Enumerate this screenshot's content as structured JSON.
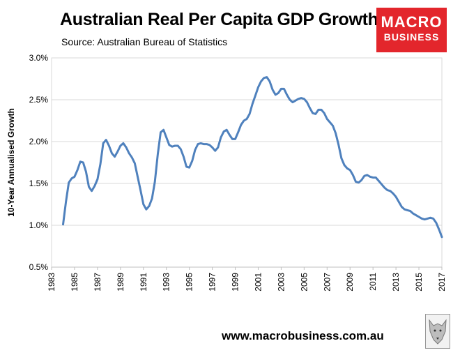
{
  "title": "Australian Real Per Capita GDP Growth",
  "subtitle": "Source: Australian Bureau of Statistics",
  "logo": {
    "line1": "MACRO",
    "line2": "BUSINESS"
  },
  "website": "www.macrobusiness.com.au",
  "colors": {
    "line": "#4f81bd",
    "logo_bg": "#e3262c",
    "grid": "#d9d9d9",
    "axis": "#bfbfbf"
  },
  "chart_data": {
    "type": "line",
    "title": "Australian Real Per Capita GDP Growth",
    "xlabel": "",
    "ylabel": "10-Year Annualised Growth",
    "xlim": [
      1983,
      2017
    ],
    "ylim": [
      0.5,
      3.0
    ],
    "x_ticks": [
      "1983",
      "1985",
      "1987",
      "1989",
      "1991",
      "1993",
      "1995",
      "1997",
      "1999",
      "2001",
      "2003",
      "2005",
      "2007",
      "2009",
      "2011",
      "2013",
      "2015",
      "2017"
    ],
    "y_ticks": [
      "0.5%",
      "1.0%",
      "1.5%",
      "2.0%",
      "2.5%",
      "3.0%"
    ],
    "grid": "horizontal",
    "series": [
      {
        "x": [
          1984.0,
          1984.25,
          1984.5,
          1984.75,
          1985.0,
          1985.25,
          1985.5,
          1985.75,
          1986.0,
          1986.25,
          1986.5,
          1986.75,
          1987.0,
          1987.25,
          1987.5,
          1987.75,
          1988.0,
          1988.25,
          1988.5,
          1988.75,
          1989.0,
          1989.25,
          1989.5,
          1989.75,
          1990.0,
          1990.25,
          1990.5,
          1990.75,
          1991.0,
          1991.25,
          1991.5,
          1991.75,
          1992.0,
          1992.25,
          1992.5,
          1992.75,
          1993.0,
          1993.25,
          1993.5,
          1993.75,
          1994.0,
          1994.25,
          1994.5,
          1994.75,
          1995.0,
          1995.25,
          1995.5,
          1995.75,
          1996.0,
          1996.25,
          1996.5,
          1996.75,
          1997.0,
          1997.25,
          1997.5,
          1997.75,
          1998.0,
          1998.25,
          1998.5,
          1998.75,
          1999.0,
          1999.25,
          1999.5,
          1999.75,
          2000.0,
          2000.25,
          2000.5,
          2000.75,
          2001.0,
          2001.25,
          2001.5,
          2001.75,
          2002.0,
          2002.25,
          2002.5,
          2002.75,
          2003.0,
          2003.25,
          2003.5,
          2003.75,
          2004.0,
          2004.25,
          2004.5,
          2004.75,
          2005.0,
          2005.25,
          2005.5,
          2005.75,
          2006.0,
          2006.25,
          2006.5,
          2006.75,
          2007.0,
          2007.25,
          2007.5,
          2007.75,
          2008.0,
          2008.25,
          2008.5,
          2008.75,
          2009.0,
          2009.25,
          2009.5,
          2009.75,
          2010.0,
          2010.25,
          2010.5,
          2010.75,
          2011.0,
          2011.25,
          2011.5,
          2011.75,
          2012.0,
          2012.25,
          2012.5,
          2012.75,
          2013.0,
          2013.25,
          2013.5,
          2013.75,
          2014.0,
          2014.25,
          2014.5,
          2014.75,
          2015.0,
          2015.25,
          2015.5,
          2015.75,
          2016.0,
          2016.25,
          2016.5,
          2016.75,
          2017.0
        ],
        "y": [
          1.01,
          1.28,
          1.51,
          1.56,
          1.58,
          1.66,
          1.76,
          1.75,
          1.64,
          1.46,
          1.41,
          1.47,
          1.55,
          1.73,
          1.98,
          2.02,
          1.95,
          1.86,
          1.82,
          1.88,
          1.95,
          1.98,
          1.93,
          1.86,
          1.81,
          1.74,
          1.58,
          1.42,
          1.25,
          1.19,
          1.23,
          1.32,
          1.52,
          1.85,
          2.11,
          2.14,
          2.05,
          1.96,
          1.94,
          1.95,
          1.95,
          1.91,
          1.82,
          1.7,
          1.69,
          1.77,
          1.9,
          1.97,
          1.98,
          1.97,
          1.97,
          1.96,
          1.93,
          1.89,
          1.93,
          2.05,
          2.12,
          2.14,
          2.08,
          2.03,
          2.03,
          2.11,
          2.2,
          2.25,
          2.27,
          2.33,
          2.45,
          2.55,
          2.65,
          2.72,
          2.76,
          2.77,
          2.72,
          2.62,
          2.56,
          2.58,
          2.63,
          2.63,
          2.56,
          2.5,
          2.47,
          2.49,
          2.51,
          2.52,
          2.51,
          2.47,
          2.4,
          2.34,
          2.33,
          2.38,
          2.38,
          2.34,
          2.27,
          2.23,
          2.19,
          2.1,
          1.96,
          1.8,
          1.72,
          1.68,
          1.66,
          1.6,
          1.52,
          1.51,
          1.54,
          1.59,
          1.6,
          1.58,
          1.57,
          1.57,
          1.53,
          1.49,
          1.45,
          1.42,
          1.41,
          1.38,
          1.34,
          1.28,
          1.22,
          1.19,
          1.18,
          1.17,
          1.14,
          1.12,
          1.1,
          1.08,
          1.07,
          1.08,
          1.09,
          1.08,
          1.03,
          0.95,
          0.86
        ]
      }
    ]
  }
}
